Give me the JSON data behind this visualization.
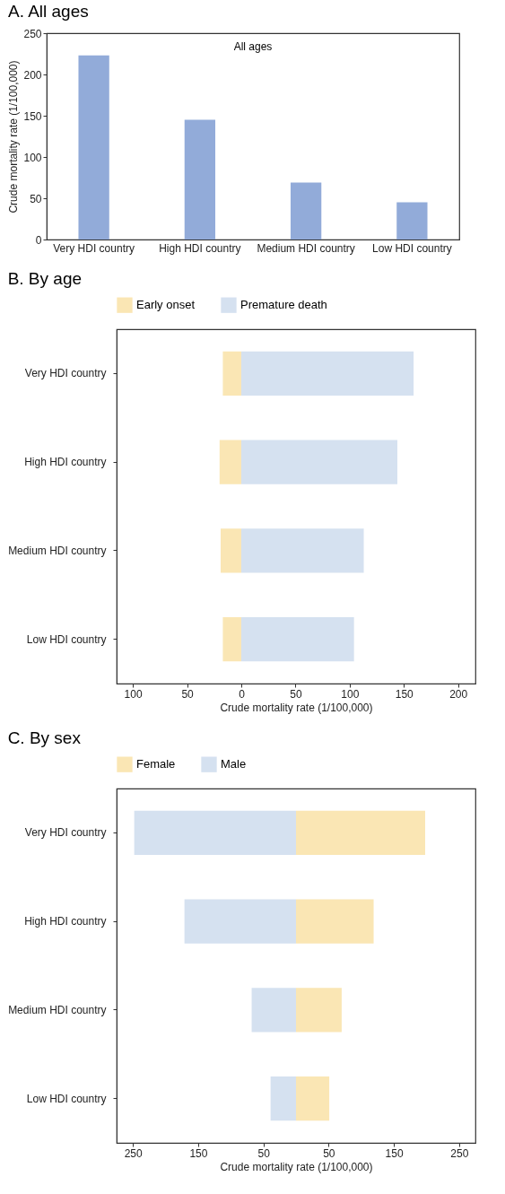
{
  "chart_data": [
    {
      "type": "bar",
      "title": "A. All ages",
      "ylabel": "Crude mortality rate (1/100,000)",
      "annotations": [
        "All ages"
      ],
      "categories": [
        "Very HDI country",
        "High HDI country",
        "Medium HDI country",
        "Low HDI country"
      ],
      "series": [
        {
          "color": "#92abd9",
          "values": [
            223,
            145,
            69,
            45
          ]
        }
      ],
      "ylim": [
        0,
        250
      ],
      "yticks": [
        0,
        50,
        100,
        150,
        200,
        250
      ]
    },
    {
      "type": "bar",
      "title": "B. By age",
      "xlabel": "Crude mortality rate (1/100,000)",
      "orientation": "horizontal",
      "stacked": true,
      "legend": "top",
      "categories": [
        "Very HDI country",
        "High HDI country",
        "Medium HDI country",
        "Low HDI country"
      ],
      "series": [
        {
          "name": "Early onset",
          "color": "#fae6b4",
          "values": [
            -17,
            -20,
            -19,
            -17
          ]
        },
        {
          "name": "Premature death",
          "color": "#d5e1f0",
          "values": [
            159,
            144,
            113,
            104
          ]
        }
      ],
      "xlim": [
        -115,
        216
      ],
      "xticks": [
        {
          "value": -100,
          "label": "100"
        },
        {
          "value": -50,
          "label": "50"
        },
        0,
        50,
        100,
        150,
        200
      ]
    },
    {
      "type": "bar",
      "title": "C. By sex",
      "xlabel": "Crude mortality rate (1/100,000)",
      "orientation": "horizontal",
      "stacked": true,
      "legend": "top",
      "categories": [
        "Very HDI country",
        "High HDI country",
        "Medium HDI country",
        "Low HDI country"
      ],
      "series": [
        {
          "name": "Female",
          "color": "#fae6b4",
          "values": [
            198,
            119,
            70,
            51
          ]
        },
        {
          "name": "Male",
          "color": "#d5e1f0",
          "values": [
            -248,
            -171,
            -68,
            -39
          ]
        }
      ],
      "xlim": [
        -275,
        275
      ],
      "xticks": [
        {
          "value": -250,
          "label": "250"
        },
        {
          "value": -150,
          "label": "150"
        },
        {
          "value": -50,
          "label": "50"
        },
        50,
        150,
        250
      ]
    }
  ]
}
